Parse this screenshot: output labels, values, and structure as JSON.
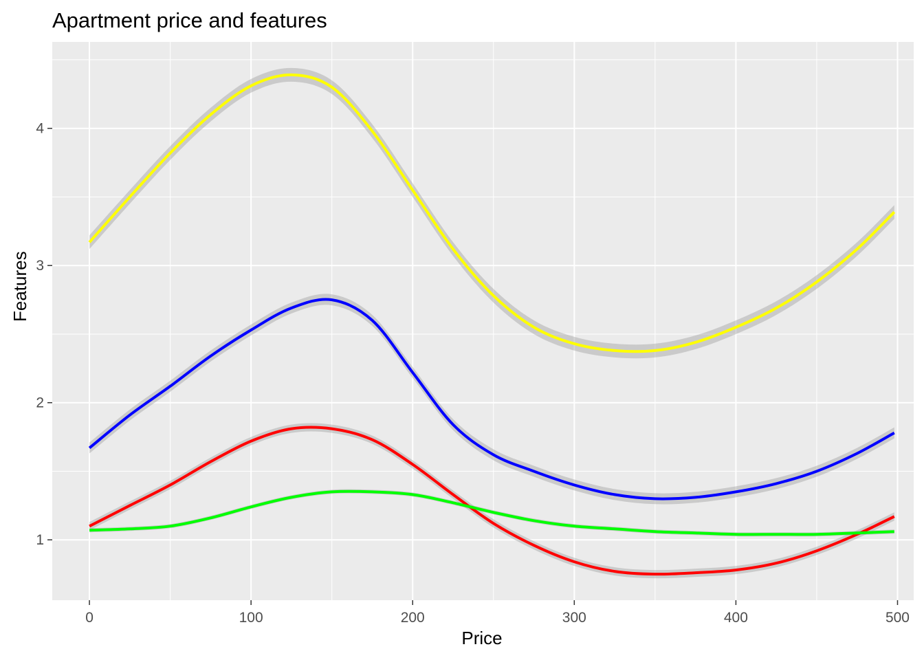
{
  "chart_data": {
    "type": "line",
    "title": "Apartment price and features",
    "xlabel": "Price",
    "ylabel": "Features",
    "xlim": [
      -23,
      510
    ],
    "ylim": [
      0.56,
      4.63
    ],
    "xticks": [
      0,
      100,
      200,
      300,
      400,
      500
    ],
    "yticks": [
      1,
      2,
      3,
      4
    ],
    "grid": true,
    "legend": "none",
    "series": [
      {
        "color": "#FFFF00",
        "ribbon": 0.05,
        "x": [
          0,
          25,
          50,
          75,
          100,
          125,
          150,
          175,
          200,
          225,
          250,
          275,
          300,
          325,
          350,
          375,
          400,
          425,
          450,
          475,
          498
        ],
        "y": [
          3.17,
          3.5,
          3.82,
          4.1,
          4.31,
          4.39,
          4.3,
          3.98,
          3.55,
          3.12,
          2.78,
          2.55,
          2.43,
          2.38,
          2.38,
          2.44,
          2.55,
          2.69,
          2.88,
          3.12,
          3.39
        ]
      },
      {
        "color": "#0000FF",
        "ribbon": 0.04,
        "x": [
          0,
          25,
          50,
          75,
          100,
          125,
          150,
          175,
          200,
          225,
          250,
          275,
          300,
          325,
          350,
          375,
          400,
          425,
          450,
          475,
          498
        ],
        "y": [
          1.67,
          1.91,
          2.12,
          2.34,
          2.53,
          2.69,
          2.75,
          2.6,
          2.22,
          1.84,
          1.62,
          1.5,
          1.4,
          1.33,
          1.3,
          1.31,
          1.35,
          1.41,
          1.5,
          1.63,
          1.78
        ]
      },
      {
        "color": "#FF0000",
        "ribbon": 0.03,
        "x": [
          0,
          25,
          50,
          75,
          100,
          125,
          150,
          175,
          200,
          225,
          250,
          275,
          300,
          325,
          350,
          375,
          400,
          425,
          450,
          475,
          498
        ],
        "y": [
          1.1,
          1.25,
          1.4,
          1.57,
          1.72,
          1.81,
          1.81,
          1.73,
          1.55,
          1.33,
          1.12,
          0.96,
          0.84,
          0.77,
          0.75,
          0.76,
          0.78,
          0.83,
          0.92,
          1.04,
          1.17
        ]
      },
      {
        "color": "#00FF00",
        "ribbon": 0.015,
        "x": [
          0,
          25,
          50,
          75,
          100,
          125,
          150,
          175,
          200,
          225,
          250,
          275,
          300,
          325,
          350,
          375,
          400,
          425,
          450,
          475,
          498
        ],
        "y": [
          1.07,
          1.08,
          1.1,
          1.16,
          1.24,
          1.31,
          1.35,
          1.35,
          1.33,
          1.27,
          1.2,
          1.14,
          1.1,
          1.08,
          1.06,
          1.05,
          1.04,
          1.04,
          1.04,
          1.05,
          1.06
        ]
      }
    ]
  },
  "text": {
    "title": "Apartment price and features",
    "xlabel": "Price",
    "ylabel": "Features"
  }
}
